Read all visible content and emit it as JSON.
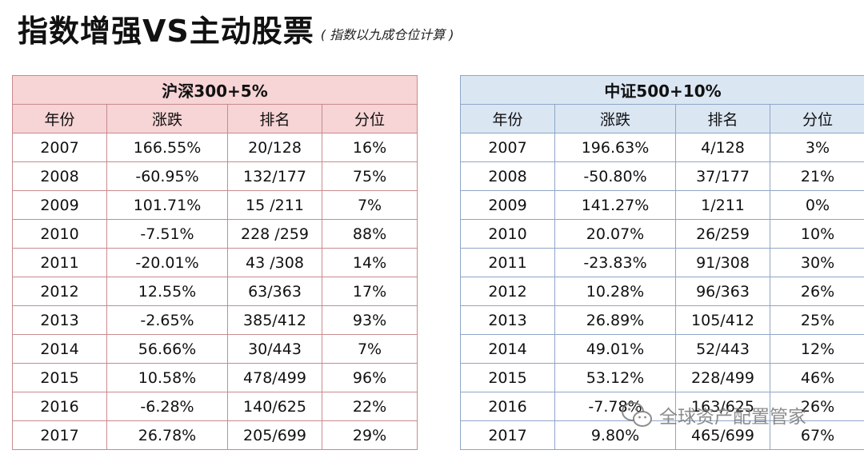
{
  "title": "指数增强VS主动股票",
  "subtitle": "( 指数以九成仓位计算 )",
  "tables": [
    {
      "header": "沪深300+5%",
      "columns": [
        "年份",
        "涨跌",
        "排名",
        "分位"
      ],
      "rows": [
        [
          "2007",
          "166.55%",
          "20/128",
          "16%"
        ],
        [
          "2008",
          "-60.95%",
          "132/177",
          "75%"
        ],
        [
          "2009",
          "101.71%",
          "15 /211",
          "7%"
        ],
        [
          "2010",
          "-7.51%",
          "228 /259",
          "88%"
        ],
        [
          "2011",
          "-20.01%",
          "43 /308",
          "14%"
        ],
        [
          "2012",
          "12.55%",
          "63/363",
          "17%"
        ],
        [
          "2013",
          "-2.65%",
          "385/412",
          "93%"
        ],
        [
          "2014",
          "56.66%",
          "30/443",
          "7%"
        ],
        [
          "2015",
          "10.58%",
          "478/499",
          "96%"
        ],
        [
          "2016",
          "-6.28%",
          "140/625",
          "22%"
        ],
        [
          "2017",
          "26.78%",
          "205/699",
          "29%"
        ]
      ]
    },
    {
      "header": "中证500+10%",
      "columns": [
        "年份",
        "涨跌",
        "排名",
        "分位"
      ],
      "rows": [
        [
          "2007",
          "196.63%",
          "4/128",
          "3%"
        ],
        [
          "2008",
          "-50.80%",
          "37/177",
          "21%"
        ],
        [
          "2009",
          "141.27%",
          "1/211",
          "0%"
        ],
        [
          "2010",
          "20.07%",
          "26/259",
          "10%"
        ],
        [
          "2011",
          "-23.83%",
          "91/308",
          "30%"
        ],
        [
          "2012",
          "10.28%",
          "96/363",
          "26%"
        ],
        [
          "2013",
          "26.89%",
          "105/412",
          "25%"
        ],
        [
          "2014",
          "49.01%",
          "52/443",
          "12%"
        ],
        [
          "2015",
          "53.12%",
          "228/499",
          "46%"
        ],
        [
          "2016",
          "-7.78%",
          "163/625",
          "26%"
        ],
        [
          "2017",
          "9.80%",
          "465/699",
          "67%"
        ]
      ]
    }
  ],
  "watermark": {
    "icon": "wechat-icon",
    "text": "全球资产配置管家"
  },
  "colors": {
    "left_header_bg": "#f7d4d5",
    "left_border": "#c98a8e",
    "right_header_bg": "#dbe6f3",
    "right_border": "#8ea6c7"
  }
}
